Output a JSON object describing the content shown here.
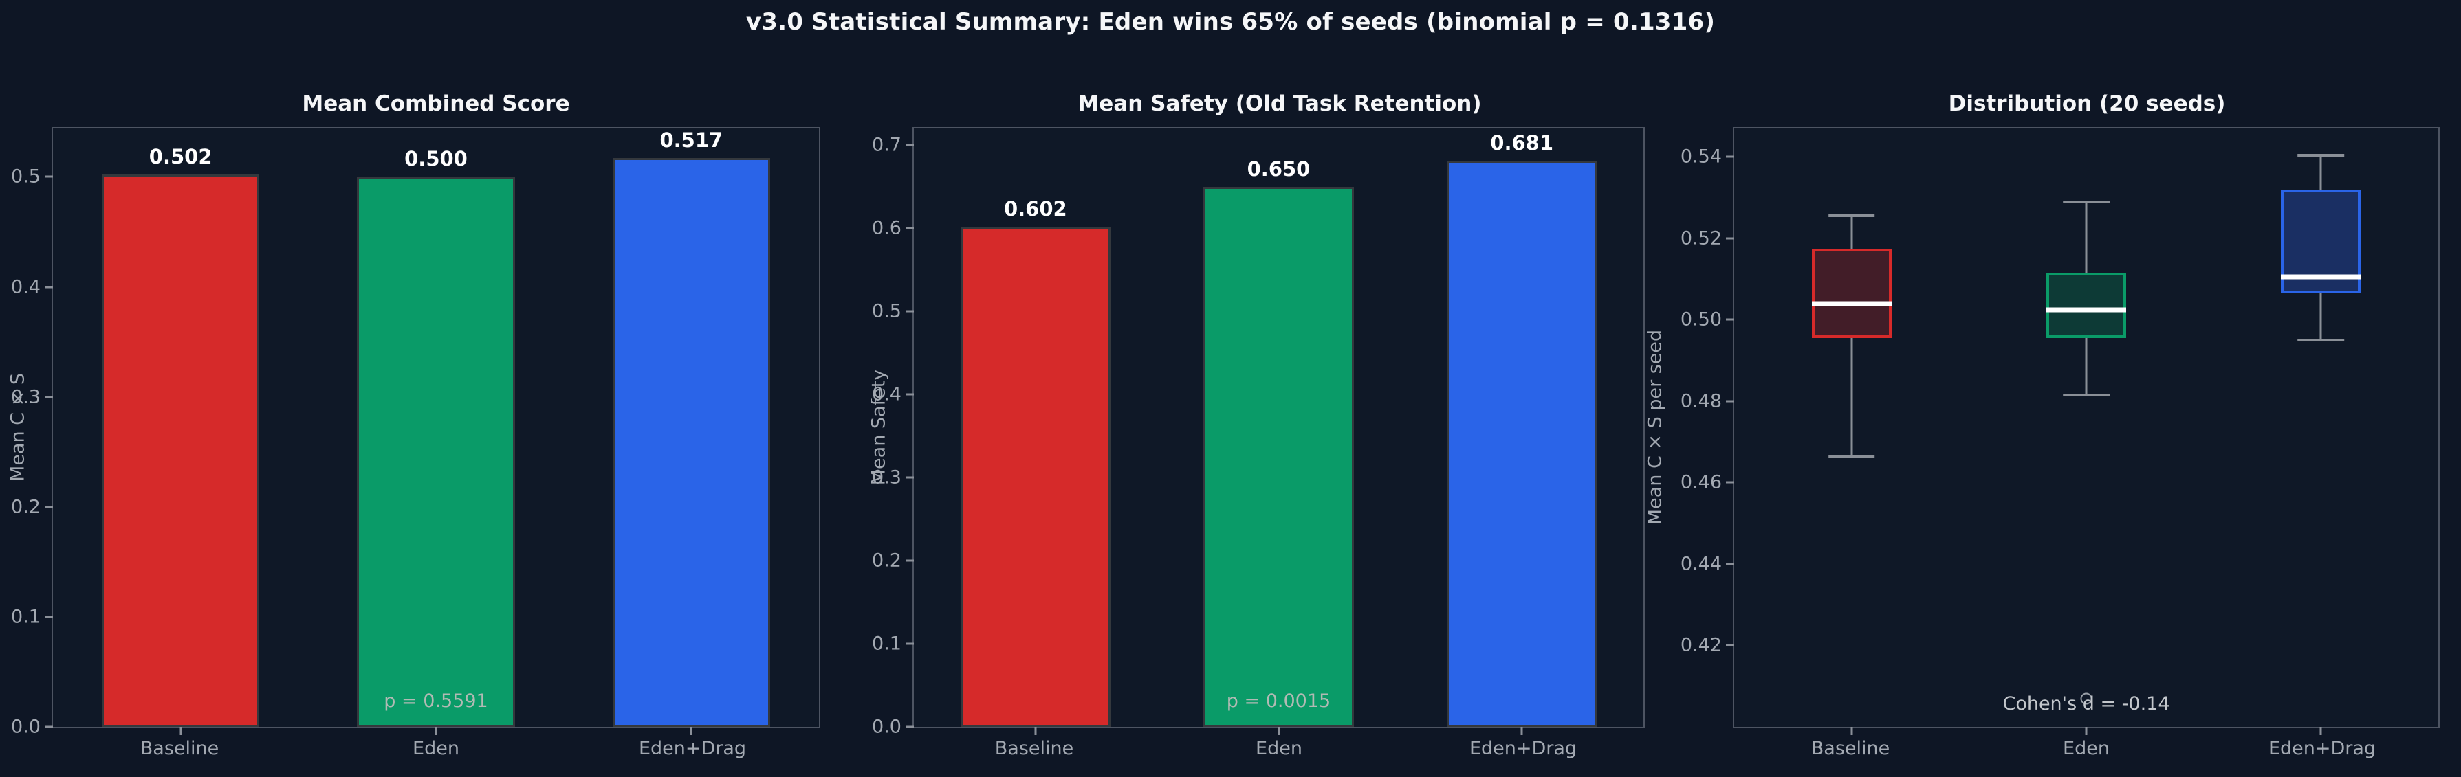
{
  "figure": {
    "title": "v3.0 Statistical Summary: Eden wins 65% of seeds (binomial p = 0.1316)"
  },
  "colors": {
    "background": "#0e1625",
    "panel": "#0f1827",
    "baseline_red": "#d62a2a",
    "eden_green": "#0a9b68",
    "edendrag_blue": "#2a64e8",
    "text_white": "#f5f6f8",
    "text_gray": "#a3a9b2"
  },
  "chart_data": [
    {
      "type": "bar",
      "title": "Mean Combined Score",
      "ylabel": "Mean C × S",
      "xlabel": "",
      "categories": [
        "Baseline",
        "Eden",
        "Eden+Drag"
      ],
      "values": [
        0.502,
        0.5,
        0.517
      ],
      "bar_labels": [
        "0.502",
        "0.500",
        "0.517"
      ],
      "bar_colors": [
        "#d62a2a",
        "#0a9b68",
        "#2a64e8"
      ],
      "yticks": [
        "0.0",
        "0.1",
        "0.2",
        "0.3",
        "0.4",
        "0.5"
      ],
      "ylim": [
        0,
        0.544
      ],
      "grid": false,
      "legend": null,
      "annotation": {
        "text": "p = 0.5591",
        "color": "#b2bab4"
      }
    },
    {
      "type": "bar",
      "title": "Mean Safety (Old Task Retention)",
      "ylabel": "Mean Safety",
      "xlabel": "",
      "categories": [
        "Baseline",
        "Eden",
        "Eden+Drag"
      ],
      "values": [
        0.602,
        0.65,
        0.681
      ],
      "bar_labels": [
        "0.602",
        "0.650",
        "0.681"
      ],
      "bar_colors": [
        "#d62a2a",
        "#0a9b68",
        "#2a64e8"
      ],
      "yticks": [
        "0.0",
        "0.1",
        "0.2",
        "0.3",
        "0.4",
        "0.5",
        "0.6",
        "0.7"
      ],
      "ylim": [
        0,
        0.72
      ],
      "grid": false,
      "legend": null,
      "annotation": {
        "text": "p = 0.0015",
        "color": "#b2bab4"
      }
    },
    {
      "type": "boxplot",
      "title": "Distribution (20 seeds)",
      "ylabel": "Mean C × S per seed",
      "xlabel": "",
      "categories": [
        "Baseline",
        "Eden",
        "Eden+Drag"
      ],
      "series": [
        {
          "name": "Baseline",
          "whisker_low": 0.4665,
          "q1": 0.4955,
          "median": 0.504,
          "q3": 0.5175,
          "whisker_high": 0.5255,
          "outliers": [],
          "edge_color": "#d62a2a",
          "fill_color": "#421d28"
        },
        {
          "name": "Eden",
          "whisker_low": 0.4815,
          "q1": 0.4955,
          "median": 0.5025,
          "q3": 0.5115,
          "whisker_high": 0.529,
          "outliers": [
            0.407
          ],
          "edge_color": "#0a9b68",
          "fill_color": "#0d3a36"
        },
        {
          "name": "Eden+Drag",
          "whisker_low": 0.495,
          "q1": 0.5065,
          "median": 0.5105,
          "q3": 0.532,
          "whisker_high": 0.5405,
          "outliers": [],
          "edge_color": "#2a64e8",
          "fill_color": "#1a2f63"
        }
      ],
      "yticks": [
        "0.42",
        "0.44",
        "0.46",
        "0.48",
        "0.50",
        "0.52",
        "0.54"
      ],
      "ylim": [
        0.4,
        0.547
      ],
      "grid": false,
      "legend": null,
      "annotation": {
        "text": "Cohen's d = -0.14",
        "color": "#c3c7cc"
      }
    }
  ]
}
